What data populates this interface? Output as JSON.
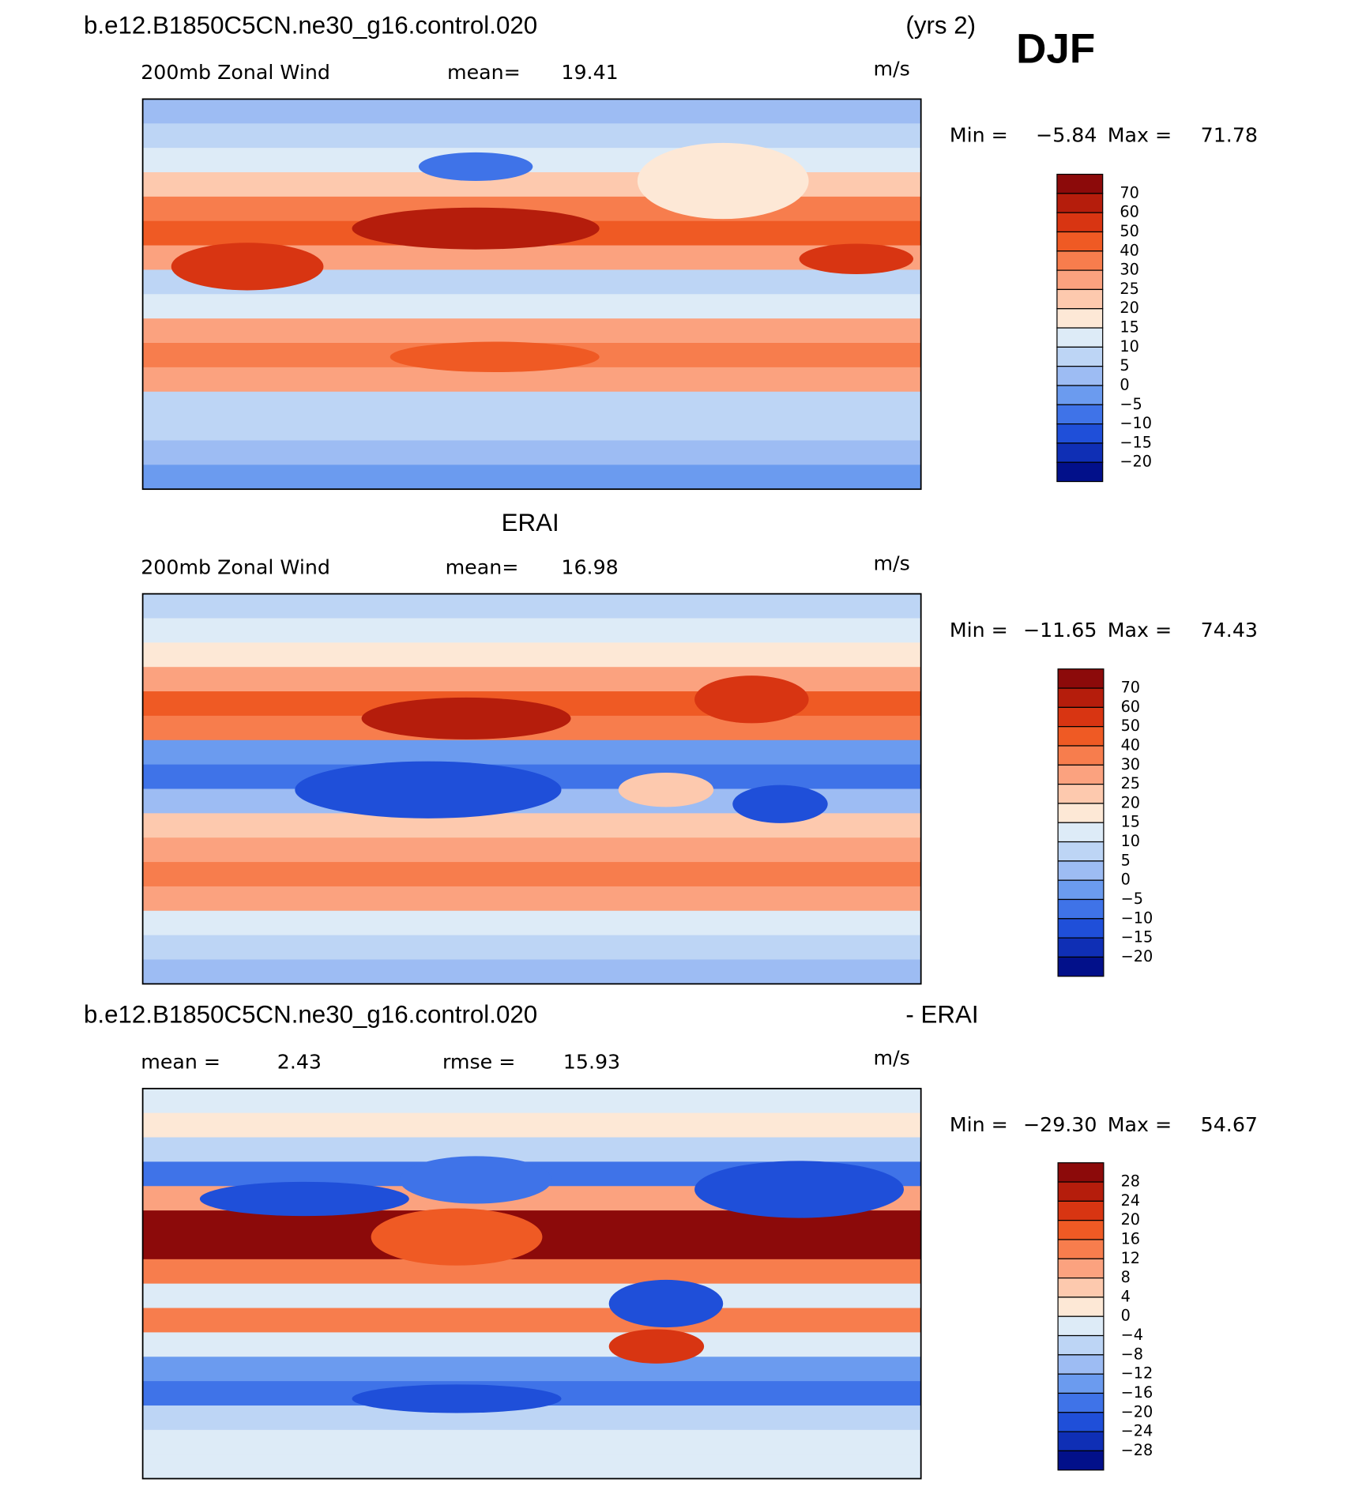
{
  "season": "DJF",
  "panels": [
    {
      "title": "b.e12.B1850C5CN.ne30_g16.control.020",
      "title_right": "(yrs 2)",
      "subtitle": "200mb Zonal Wind",
      "stats": [
        {
          "label": "mean=",
          "value": "19.41"
        }
      ],
      "units": "m/s",
      "min_label": "Min =",
      "min": "−5.84",
      "max_label": "Max =",
      "max": "71.78",
      "colorbar": {
        "colors": [
          "#8c0a0a",
          "#b51d0c",
          "#d83512",
          "#ef5a24",
          "#f77d4d",
          "#fba27f",
          "#fdc9ae",
          "#fde8d6",
          "#ddebf7",
          "#bdd5f5",
          "#9dbcf3",
          "#6b9bef",
          "#3f73e8",
          "#1f4fd9",
          "#0f2fb5",
          "#02108a"
        ],
        "labels": [
          "70",
          "60",
          "50",
          "40",
          "30",
          "25",
          "20",
          "15",
          "10",
          "5",
          "0",
          "−5",
          "−10",
          "−15",
          "−20"
        ]
      }
    },
    {
      "title": "ERAI",
      "subtitle": "200mb Zonal Wind",
      "stats": [
        {
          "label": "mean=",
          "value": "16.98"
        }
      ],
      "units": "m/s",
      "min_label": "Min =",
      "min": "−11.65",
      "max_label": "Max =",
      "max": "74.43",
      "colorbar": {
        "colors": [
          "#8c0a0a",
          "#b51d0c",
          "#d83512",
          "#ef5a24",
          "#f77d4d",
          "#fba27f",
          "#fdc9ae",
          "#fde8d6",
          "#ddebf7",
          "#bdd5f5",
          "#9dbcf3",
          "#6b9bef",
          "#3f73e8",
          "#1f4fd9",
          "#0f2fb5",
          "#02108a"
        ],
        "labels": [
          "70",
          "60",
          "50",
          "40",
          "30",
          "25",
          "20",
          "15",
          "10",
          "5",
          "0",
          "−5",
          "−10",
          "−15",
          "−20"
        ]
      }
    },
    {
      "title": "b.e12.B1850C5CN.ne30_g16.control.020",
      "title_right": "- ERAI",
      "stats": [
        {
          "label": "mean =",
          "value": "2.43"
        },
        {
          "label": "rmse =",
          "value": "15.93"
        }
      ],
      "units": "m/s",
      "min_label": "Min =",
      "min": "−29.30",
      "max_label": "Max =",
      "max": "54.67",
      "colorbar": {
        "colors": [
          "#8c0a0a",
          "#b51d0c",
          "#d83512",
          "#ef5a24",
          "#f77d4d",
          "#fba27f",
          "#fdc9ae",
          "#fde8d6",
          "#ddebf7",
          "#bdd5f5",
          "#9dbcf3",
          "#6b9bef",
          "#3f73e8",
          "#1f4fd9",
          "#0f2fb5",
          "#02108a"
        ],
        "labels": [
          "28",
          "24",
          "20",
          "16",
          "12",
          "8",
          "4",
          "0",
          "−4",
          "−8",
          "−12",
          "−16",
          "−20",
          "−24",
          "−28"
        ]
      }
    }
  ]
}
